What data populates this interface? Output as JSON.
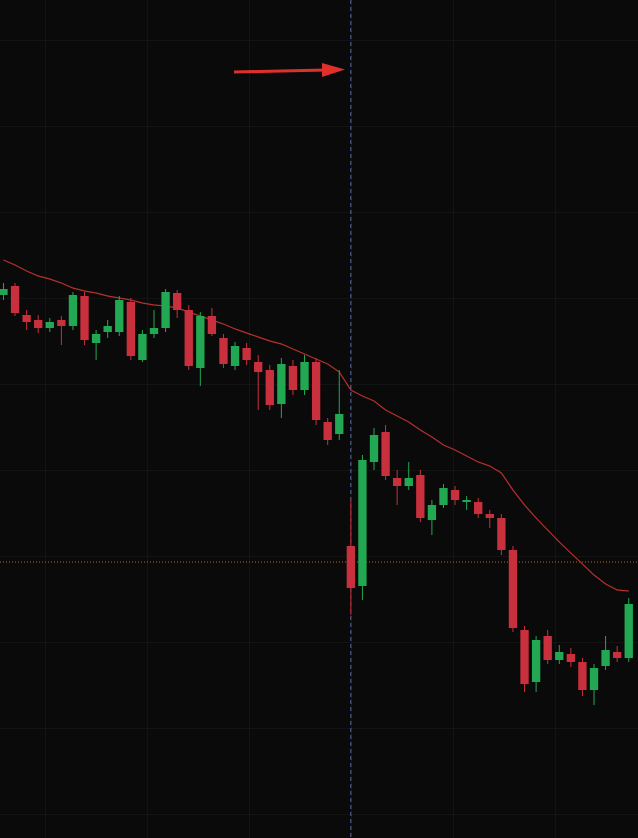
{
  "chart_data": {
    "type": "candlestick",
    "xlim": [
      -0.3,
      54.8
    ],
    "ylim": [
      0,
      838
    ],
    "up_color": "#22a853",
    "down_color": "#c9303d",
    "open": [
      543,
      552,
      523,
      518,
      510,
      518,
      512,
      542,
      495,
      506,
      506,
      536,
      478,
      504,
      510,
      545,
      528,
      470,
      522,
      500,
      472,
      490,
      476,
      468,
      434,
      472,
      448,
      476,
      416,
      404,
      292,
      252,
      376,
      406,
      360,
      352,
      363,
      318,
      333,
      348,
      336,
      336,
      324,
      320,
      288,
      208,
      156,
      202,
      178,
      184,
      176,
      148,
      172,
      186,
      180
    ],
    "high": [
      555,
      555,
      528,
      523,
      520,
      522,
      546,
      546,
      508,
      518,
      542,
      540,
      508,
      528,
      549,
      548,
      533,
      526,
      530,
      504,
      496,
      495,
      483,
      473,
      480,
      478,
      483,
      480,
      420,
      468,
      338,
      383,
      410,
      413,
      368,
      376,
      368,
      338,
      354,
      352,
      342,
      340,
      328,
      324,
      292,
      212,
      202,
      208,
      193,
      190,
      180,
      174,
      202,
      192,
      240
    ],
    "low": [
      538,
      522,
      508,
      505,
      506,
      493,
      508,
      493,
      478,
      500,
      502,
      478,
      476,
      500,
      506,
      520,
      468,
      452,
      502,
      470,
      468,
      473,
      428,
      428,
      420,
      443,
      443,
      413,
      393,
      398,
      223,
      238,
      368,
      358,
      333,
      348,
      316,
      303,
      330,
      333,
      328,
      320,
      310,
      283,
      206,
      146,
      146,
      174,
      174,
      171,
      142,
      133,
      168,
      176,
      176
    ],
    "close": [
      549,
      525,
      516,
      510,
      516,
      512,
      543,
      498,
      504,
      512,
      538,
      482,
      504,
      510,
      546,
      528,
      472,
      522,
      504,
      474,
      492,
      478,
      466,
      433,
      474,
      448,
      476,
      418,
      398,
      424,
      250,
      378,
      403,
      362,
      352,
      360,
      320,
      333,
      350,
      338,
      338,
      324,
      320,
      288,
      210,
      154,
      198,
      178,
      186,
      176,
      148,
      170,
      188,
      180,
      234
    ],
    "moving_average": {
      "color": "#b8302c",
      "values": [
        578,
        573,
        567,
        562,
        559,
        555,
        550,
        547,
        545,
        542,
        540,
        538,
        535,
        533,
        532,
        530,
        526,
        522,
        518,
        514,
        509,
        505,
        501,
        497,
        494,
        489,
        484,
        479,
        474,
        466,
        448,
        442,
        437,
        428,
        422,
        416,
        408,
        401,
        393,
        388,
        382,
        376,
        372,
        365,
        348,
        333,
        320,
        308,
        296,
        285,
        274,
        263,
        254,
        248,
        247
      ]
    },
    "price_line": {
      "value": 276,
      "color": "#c0622a"
    },
    "vertical_line": {
      "index": 30,
      "color": "#5a6bb0"
    }
  }
}
